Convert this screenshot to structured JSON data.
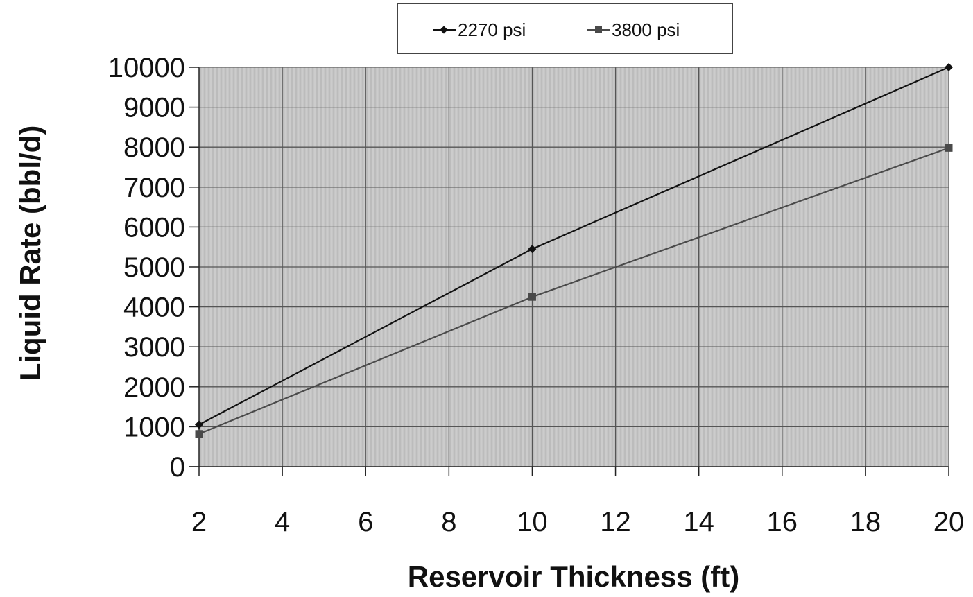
{
  "chart_data": {
    "type": "line",
    "xlabel": "Reservoir Thickness (ft)",
    "ylabel": "Liquid Rate (bbl/d)",
    "xlim": [
      2,
      20
    ],
    "ylim": [
      0,
      10000
    ],
    "x_ticks": [
      2,
      4,
      6,
      8,
      10,
      12,
      14,
      16,
      18,
      20
    ],
    "y_ticks": [
      0,
      1000,
      2000,
      3000,
      4000,
      5000,
      6000,
      7000,
      8000,
      9000,
      10000
    ],
    "grid": true,
    "legend_position": "top-center",
    "plot_background": "#c8c8c8",
    "series": [
      {
        "name": "2270 psi",
        "marker": "diamond",
        "color": "#111111",
        "x": [
          2,
          10,
          20
        ],
        "y": [
          1050,
          5450,
          10000
        ]
      },
      {
        "name": "3800 psi",
        "marker": "square",
        "color": "#4a4a4a",
        "x": [
          2,
          10,
          20
        ],
        "y": [
          820,
          4250,
          7980
        ]
      }
    ]
  }
}
